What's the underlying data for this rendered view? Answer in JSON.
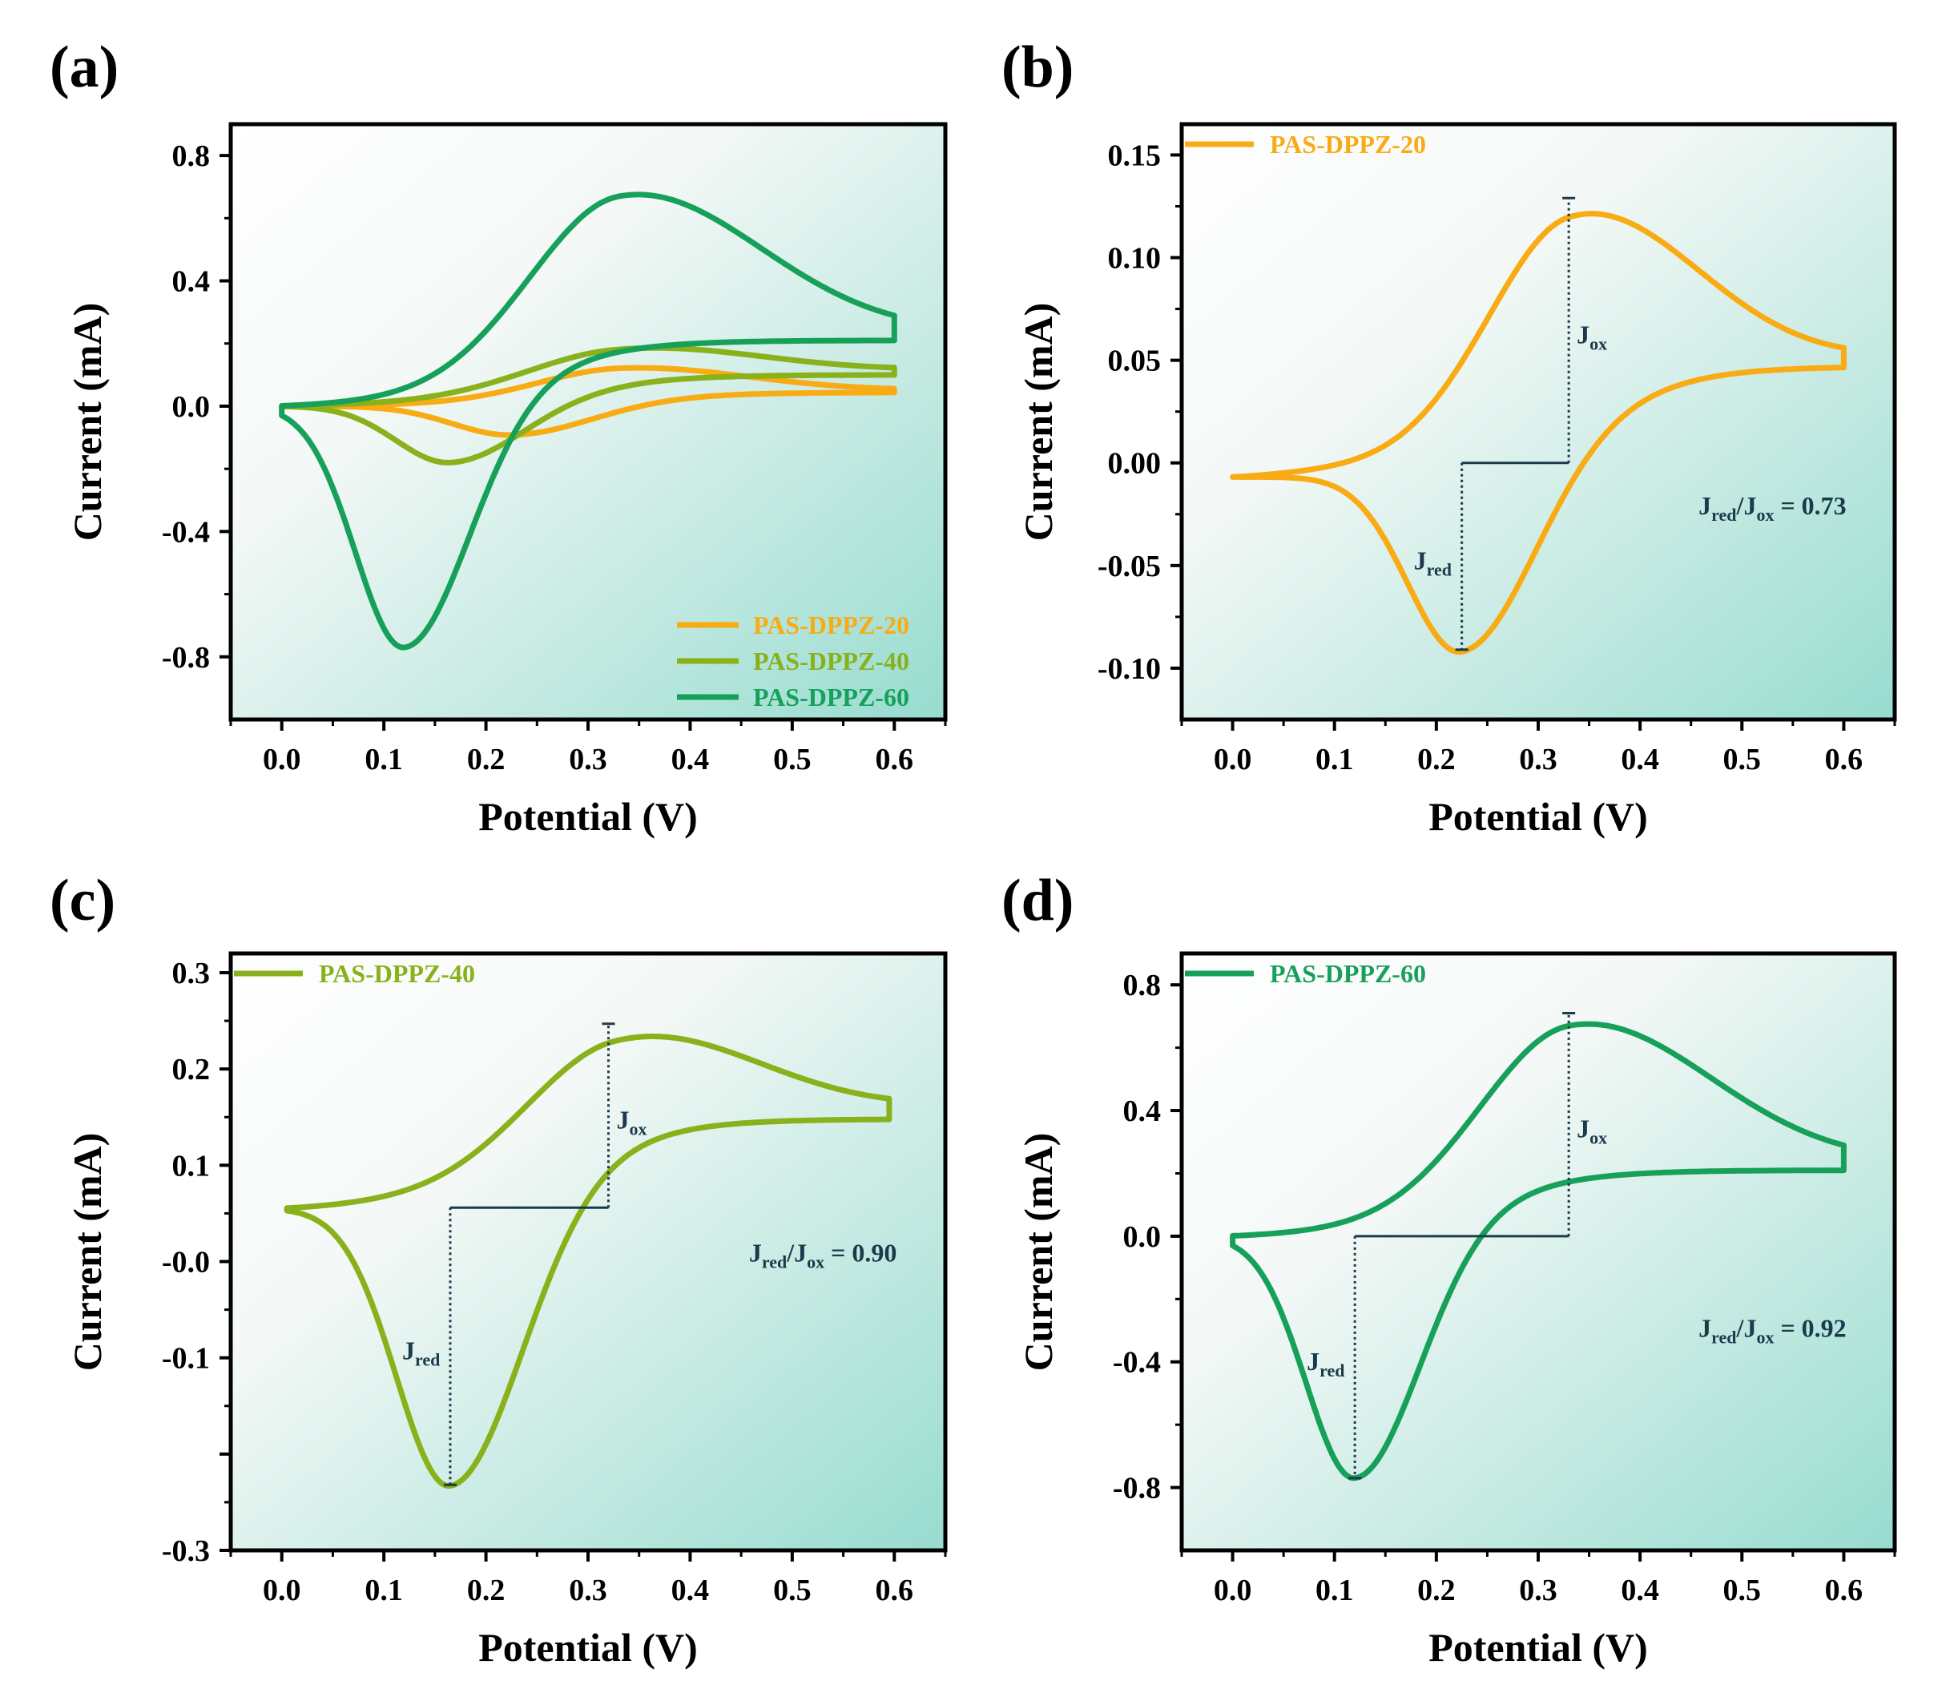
{
  "figure": {
    "background_gradient": [
      "#ffffff",
      "#f3f8f6",
      "#97dccf"
    ],
    "annotation_color": "#1b3a4b"
  },
  "chart_data": [
    {
      "id": "a",
      "panel_label": "(a)",
      "type": "line",
      "xlabel": "Potential (V)",
      "ylabel": "Current (mA)",
      "xlim": [
        -0.05,
        0.65
      ],
      "ylim": [
        -1.0,
        0.9
      ],
      "xticks": [
        0.0,
        0.1,
        0.2,
        0.3,
        0.4,
        0.5,
        0.6
      ],
      "xtick_labels": [
        "0.0",
        "0.1",
        "0.2",
        "0.3",
        "0.4",
        "0.5",
        "0.6"
      ],
      "yticks": [
        -0.8,
        -0.4,
        0.0,
        0.4,
        0.8
      ],
      "ytick_labels": [
        "-0.8",
        "-0.4",
        "0.0",
        "0.4",
        "0.8"
      ],
      "legend_position": "bottom-right",
      "series": [
        {
          "name": "PAS-DPPZ-20",
          "color": "#f9ab14",
          "curve": {
            "E_ox": 0.33,
            "I_ox": 0.13,
            "E_red": 0.225,
            "I_red": -0.092,
            "ox_width": 0.09,
            "red_width": 0.06,
            "i_end_fwd": 0.048,
            "i_end_rev": 0.044,
            "i_start": 0.0,
            "sweep_min": 0.0,
            "sweep_max": 0.6
          }
        },
        {
          "name": "PAS-DPPZ-40",
          "color": "#88b11b",
          "curve": {
            "E_ox": 0.325,
            "I_ox": 0.2,
            "E_red": 0.165,
            "I_red": -0.18,
            "ox_width": 0.1,
            "red_width": 0.055,
            "i_end_fwd": 0.108,
            "i_end_rev": 0.1,
            "i_start": 0.0,
            "sweep_min": 0.0,
            "sweep_max": 0.6
          }
        },
        {
          "name": "PAS-DPPZ-60",
          "color": "#16a05a",
          "curve": {
            "E_ox": 0.33,
            "I_ox": 0.71,
            "E_red": 0.12,
            "I_red": -0.77,
            "ox_width": 0.1,
            "red_width": 0.05,
            "i_end_fwd": 0.215,
            "i_end_rev": 0.21,
            "i_start": 0.0,
            "sweep_min": 0.0,
            "sweep_max": 0.6
          }
        }
      ]
    },
    {
      "id": "b",
      "panel_label": "(b)",
      "type": "line",
      "xlabel": "Potential (V)",
      "ylabel": "Current (mA)",
      "xlim": [
        -0.05,
        0.65
      ],
      "ylim": [
        -0.125,
        0.165
      ],
      "xticks": [
        0.0,
        0.1,
        0.2,
        0.3,
        0.4,
        0.5,
        0.6
      ],
      "xtick_labels": [
        "0.0",
        "0.1",
        "0.2",
        "0.3",
        "0.4",
        "0.5",
        "0.6"
      ],
      "yticks": [
        -0.1,
        -0.05,
        0.0,
        0.05,
        0.1,
        0.15
      ],
      "ytick_labels": [
        "-0.10",
        "-0.05",
        "0.00",
        "0.05",
        "0.10",
        "0.15"
      ],
      "legend_position": "top-left",
      "series": [
        {
          "name": "PAS-DPPZ-20",
          "color": "#f9ab14",
          "curve": {
            "E_ox": 0.33,
            "I_ox": 0.13,
            "E_red": 0.225,
            "I_red": -0.092,
            "ox_width": 0.09,
            "red_width": 0.055,
            "i_end_fwd": 0.048,
            "i_end_rev": 0.047,
            "i_start": -0.007,
            "sweep_min": 0.0,
            "sweep_max": 0.6
          }
        }
      ],
      "annotation": {
        "baseline": 0.0,
        "E_red": 0.225,
        "I_red": -0.091,
        "E_ox": 0.33,
        "I_ox": 0.129,
        "ratio_value": "0.73",
        "ratio_at": [
          0.53,
          -0.025
        ]
      }
    },
    {
      "id": "c",
      "panel_label": "(c)",
      "type": "line",
      "xlabel": "Potential (V)",
      "ylabel": "Current (mA)",
      "xlim": [
        -0.05,
        0.65
      ],
      "ylim": [
        -0.3,
        0.32
      ],
      "xticks": [
        0.0,
        0.1,
        0.2,
        0.3,
        0.4,
        0.5,
        0.6
      ],
      "xtick_labels": [
        "0.0",
        "0.1",
        "0.2",
        "0.3",
        "0.4",
        "0.5",
        "0.6"
      ],
      "yticks": [
        -0.3,
        -0.1,
        0.0,
        0.1,
        0.2,
        0.3
      ],
      "ytick_labels": [
        "-0.3",
        "-0.1",
        "-0.0",
        "0.1",
        "0.2",
        "0.3"
      ],
      "ytick_positions": [
        -0.3,
        -0.2,
        -0.1,
        0.0,
        0.1,
        0.2,
        0.3
      ],
      "legend_position": "top-left",
      "series": [
        {
          "name": "PAS-DPPZ-40",
          "color": "#88b11b",
          "curve": {
            "E_ox": 0.325,
            "I_ox": 0.247,
            "E_red": 0.165,
            "I_red": -0.233,
            "ox_width": 0.1,
            "red_width": 0.055,
            "i_end_fwd": 0.153,
            "i_end_rev": 0.148,
            "i_start": 0.055,
            "sweep_min": 0.005,
            "sweep_max": 0.595
          }
        }
      ],
      "annotation": {
        "baseline": 0.056,
        "E_red": 0.165,
        "I_red": -0.232,
        "E_ox": 0.32,
        "I_ox": 0.247,
        "ratio_value": "0.90",
        "ratio_at": [
          0.53,
          0.0
        ]
      }
    },
    {
      "id": "d",
      "panel_label": "(d)",
      "type": "line",
      "xlabel": "Potential (V)",
      "ylabel": "Current (mA)",
      "xlim": [
        -0.05,
        0.65
      ],
      "ylim": [
        -1.0,
        0.9
      ],
      "xticks": [
        0.0,
        0.1,
        0.2,
        0.3,
        0.4,
        0.5,
        0.6
      ],
      "xtick_labels": [
        "0.0",
        "0.1",
        "0.2",
        "0.3",
        "0.4",
        "0.5",
        "0.6"
      ],
      "yticks": [
        -0.8,
        -0.4,
        0.0,
        0.4,
        0.8
      ],
      "ytick_labels": [
        "-0.8",
        "-0.4",
        "0.0",
        "0.4",
        "0.8"
      ],
      "legend_position": "top-left",
      "series": [
        {
          "name": "PAS-DPPZ-60",
          "color": "#16a05a",
          "curve": {
            "E_ox": 0.33,
            "I_ox": 0.71,
            "E_red": 0.12,
            "I_red": -0.77,
            "ox_width": 0.1,
            "red_width": 0.05,
            "i_end_fwd": 0.215,
            "i_end_rev": 0.21,
            "i_start": 0.0,
            "sweep_min": 0.0,
            "sweep_max": 0.6
          }
        }
      ],
      "annotation": {
        "baseline": 0.0,
        "E_red": 0.12,
        "I_red": -0.77,
        "E_ox": 0.33,
        "I_ox": 0.71,
        "ratio_value": "0.92",
        "ratio_at": [
          0.53,
          -0.32
        ]
      }
    }
  ],
  "annotation_labels": {
    "J": "J",
    "sub_ox": "ox",
    "sub_red": "red",
    "slash": "/",
    "equals": " = "
  }
}
